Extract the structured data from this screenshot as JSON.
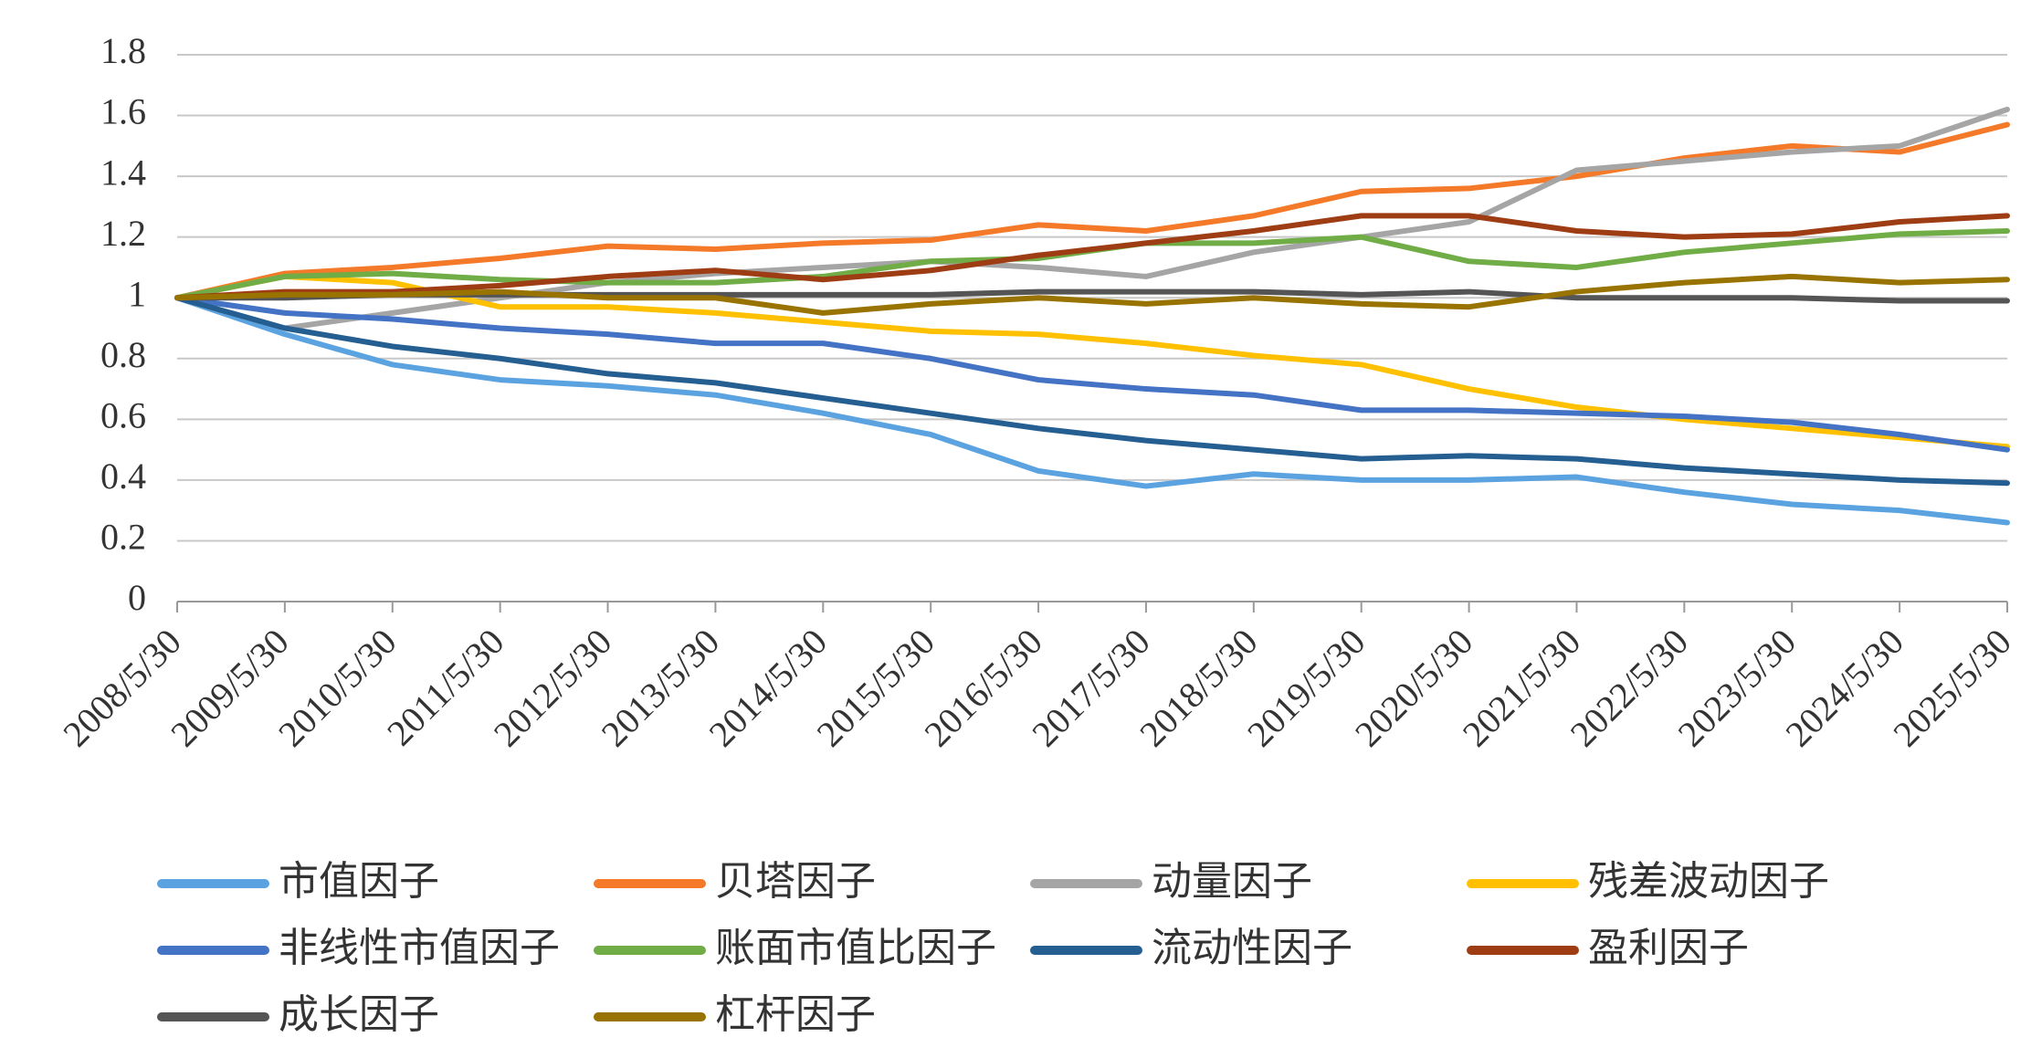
{
  "chart_data": {
    "type": "line",
    "categories": [
      "2008/5/30",
      "2009/5/30",
      "2010/5/30",
      "2011/5/30",
      "2012/5/30",
      "2013/5/30",
      "2014/5/30",
      "2015/5/30",
      "2016/5/30",
      "2017/5/30",
      "2018/5/30",
      "2019/5/30",
      "2020/5/30",
      "2021/5/30",
      "2022/5/30",
      "2023/5/30",
      "2024/5/30",
      "2025/5/30"
    ],
    "ylim": [
      0,
      1.8
    ],
    "yticks": [
      0,
      0.2,
      0.4,
      0.6,
      0.8,
      1,
      1.2,
      1.4,
      1.6,
      1.8
    ],
    "grid": true,
    "series": [
      {
        "name": "市值因子",
        "color": "#5ba3e0",
        "values": [
          1,
          0.88,
          0.78,
          0.73,
          0.71,
          0.68,
          0.62,
          0.55,
          0.43,
          0.38,
          0.42,
          0.4,
          0.4,
          0.41,
          0.36,
          0.32,
          0.3,
          0.26
        ]
      },
      {
        "name": "贝塔因子",
        "color": "#f47a2a",
        "values": [
          1,
          1.08,
          1.1,
          1.13,
          1.17,
          1.16,
          1.18,
          1.19,
          1.24,
          1.22,
          1.27,
          1.35,
          1.36,
          1.4,
          1.46,
          1.5,
          1.48,
          1.57
        ]
      },
      {
        "name": "动量因子",
        "color": "#a5a5a5",
        "values": [
          1,
          0.9,
          0.95,
          1.0,
          1.05,
          1.08,
          1.1,
          1.12,
          1.1,
          1.07,
          1.15,
          1.2,
          1.25,
          1.42,
          1.45,
          1.48,
          1.5,
          1.62
        ]
      },
      {
        "name": "残差波动因子",
        "color": "#ffc000",
        "values": [
          1,
          1.07,
          1.05,
          0.97,
          0.97,
          0.95,
          0.92,
          0.89,
          0.88,
          0.85,
          0.81,
          0.78,
          0.7,
          0.64,
          0.6,
          0.57,
          0.54,
          0.51
        ]
      },
      {
        "name": "非线性市值因子",
        "color": "#4472c4",
        "values": [
          1,
          0.95,
          0.93,
          0.9,
          0.88,
          0.85,
          0.85,
          0.8,
          0.73,
          0.7,
          0.68,
          0.63,
          0.63,
          0.62,
          0.61,
          0.59,
          0.55,
          0.5
        ]
      },
      {
        "name": "账面市值比因子",
        "color": "#70ad47",
        "values": [
          1,
          1.07,
          1.08,
          1.06,
          1.05,
          1.05,
          1.07,
          1.12,
          1.13,
          1.18,
          1.18,
          1.2,
          1.12,
          1.1,
          1.15,
          1.18,
          1.21,
          1.22
        ]
      },
      {
        "name": "流动性因子",
        "color": "#255e91",
        "values": [
          1,
          0.9,
          0.84,
          0.8,
          0.75,
          0.72,
          0.67,
          0.62,
          0.57,
          0.53,
          0.5,
          0.47,
          0.48,
          0.47,
          0.44,
          0.42,
          0.4,
          0.39
        ]
      },
      {
        "name": "盈利因子",
        "color": "#9e3d14",
        "values": [
          1,
          1.02,
          1.02,
          1.04,
          1.07,
          1.09,
          1.06,
          1.09,
          1.14,
          1.18,
          1.22,
          1.27,
          1.27,
          1.22,
          1.2,
          1.21,
          1.25,
          1.27
        ]
      },
      {
        "name": "成长因子",
        "color": "#555555",
        "values": [
          1,
          1.0,
          1.01,
          1.01,
          1.01,
          1.01,
          1.01,
          1.01,
          1.02,
          1.02,
          1.02,
          1.01,
          1.02,
          1.0,
          1.0,
          1.0,
          0.99,
          0.99
        ]
      },
      {
        "name": "杠杆因子",
        "color": "#997300",
        "values": [
          1,
          1.01,
          1.01,
          1.02,
          1.0,
          1.0,
          0.95,
          0.98,
          1.0,
          0.98,
          1.0,
          0.98,
          0.97,
          1.02,
          1.05,
          1.07,
          1.05,
          1.06
        ]
      }
    ]
  }
}
